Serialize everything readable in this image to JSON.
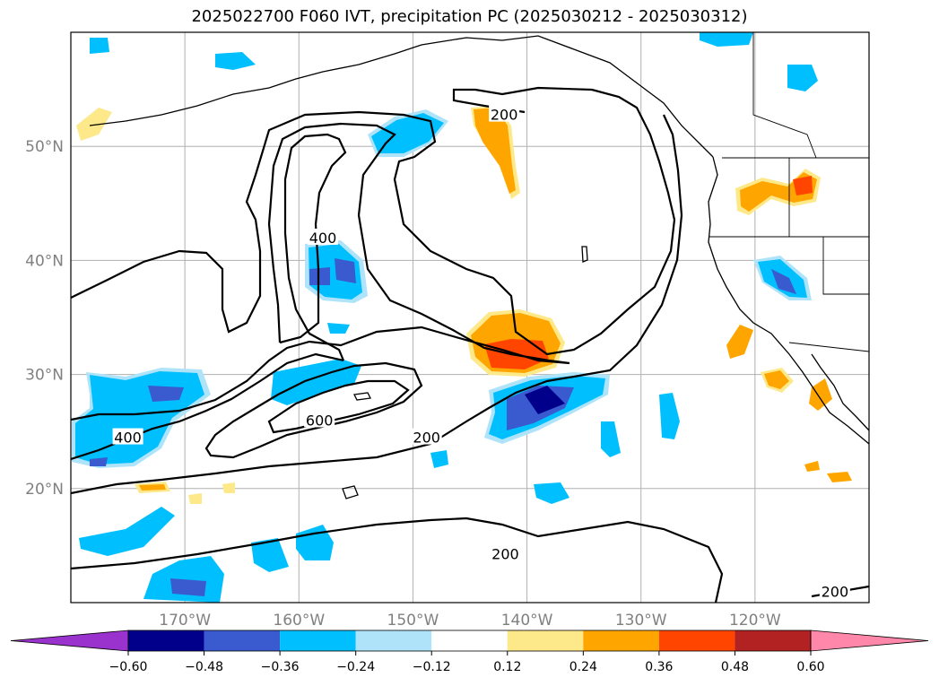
{
  "chart_data": {
    "type": "contour-map",
    "title": "2025022700 F060 IVT, precipitation PC (2025030212 - 2025030312)",
    "map_extent": {
      "lon": [
        -180,
        -110
      ],
      "lat": [
        10,
        60
      ]
    },
    "lat_ticks": [
      {
        "value": 20,
        "label": "20°N"
      },
      {
        "value": 30,
        "label": "30°N"
      },
      {
        "value": 40,
        "label": "40°N"
      },
      {
        "value": 50,
        "label": "50°N"
      }
    ],
    "lon_ticks": [
      {
        "value": -170,
        "label": "170°W"
      },
      {
        "value": -160,
        "label": "160°W"
      },
      {
        "value": -150,
        "label": "150°W"
      },
      {
        "value": -140,
        "label": "140°W"
      },
      {
        "value": -130,
        "label": "130°W"
      },
      {
        "value": -120,
        "label": "120°W"
      }
    ],
    "grid": true,
    "contour_labels": [
      {
        "text": "200",
        "lon": -142.0,
        "lat": 52.8
      },
      {
        "text": "400",
        "lon": -157.9,
        "lat": 42.0
      },
      {
        "text": "400",
        "lon": -175.0,
        "lat": 24.5
      },
      {
        "text": "600",
        "lon": -158.2,
        "lat": 26.0
      },
      {
        "text": "200",
        "lon": -148.8,
        "lat": 24.5
      },
      {
        "text": "200",
        "lon": -141.9,
        "lat": 14.3
      },
      {
        "text": "200",
        "lon": -113.0,
        "lat": 11.0
      }
    ],
    "colorbar": {
      "ticks": [
        "−0.60",
        "−0.48",
        "−0.36",
        "−0.24",
        "−0.12",
        "0.12",
        "0.24",
        "0.36",
        "0.48",
        "0.60"
      ],
      "colors": [
        "#9a32cd",
        "#00008b",
        "#3a5ad0",
        "#00bfff",
        "#aee3fa",
        "#ffffff",
        "#fde98a",
        "#ffa500",
        "#ff4500",
        "#b22222",
        "#ff88aa"
      ]
    },
    "colors": {
      "contour": "#000000",
      "coastline": "#000000",
      "grid": "#b0b0b0",
      "tick_label": "#808080"
    }
  }
}
